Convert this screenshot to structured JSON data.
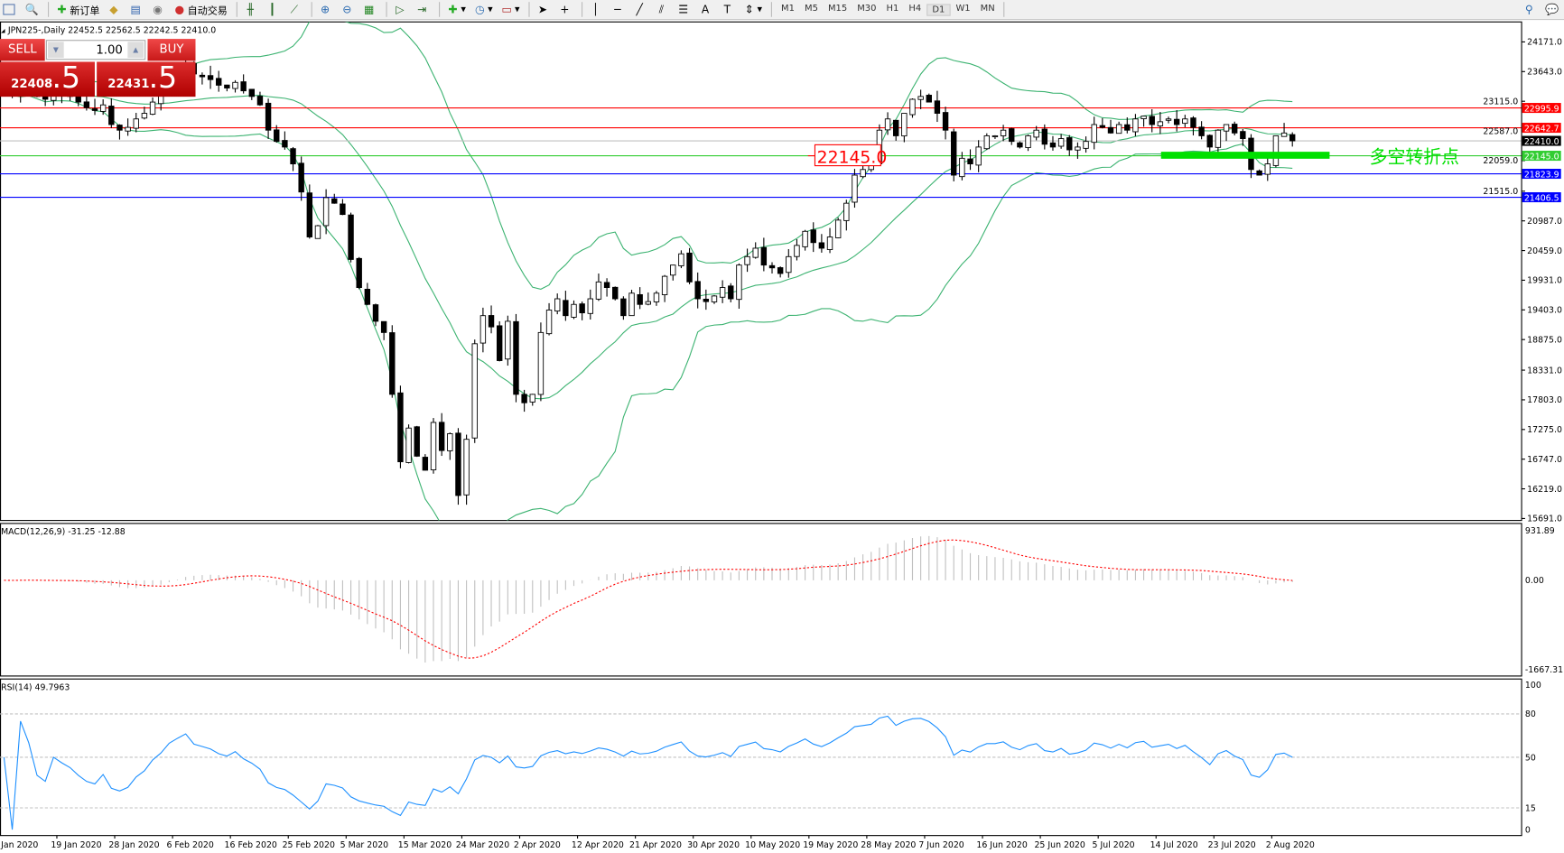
{
  "toolbar": {
    "new_order": "新订单",
    "auto_trading": "自动交易",
    "timeframes": [
      "M1",
      "M5",
      "M15",
      "M30",
      "H1",
      "H4",
      "D1",
      "W1",
      "MN"
    ],
    "active_timeframe": "D1"
  },
  "chart": {
    "header": "JPN225-,Daily  22452.5 22562.5 22242.5 22410.0",
    "annotation_price": "22145.0",
    "annotation_text": "多空转折点"
  },
  "trade_panel": {
    "sell_label": "SELL",
    "buy_label": "BUY",
    "lot": "1.00",
    "sell_main": "22408",
    "sell_frac": ".5",
    "buy_main": "22431",
    "buy_frac": ".5"
  },
  "colors": {
    "up_body": "#ffffff",
    "down_body": "#000000",
    "bands": "#3cb371",
    "macd_hist": "#c0c0c0",
    "macd_signal": "#ff0000",
    "rsi": "#1e90ff",
    "annotation": "#00e000"
  },
  "price_axis": [
    "24171.0",
    "23643.0",
    "23115.0",
    "22587.0",
    "22059.0",
    "21515.0",
    "20987.0",
    "20459.0",
    "19931.0",
    "19403.0",
    "18875.0",
    "18331.0",
    "17803.0",
    "17275.0",
    "16747.0",
    "16219.0",
    "15691.0"
  ],
  "hlines": [
    {
      "price": 22995.9,
      "label": "22995.9",
      "color": "#ff0000"
    },
    {
      "price": 22642.7,
      "label": "22642.7",
      "color": "#ff0000"
    },
    {
      "price": 22410.0,
      "label": "22410.0",
      "color": "#000000",
      "line": "#c0c0c0"
    },
    {
      "price": 22145.0,
      "label": "22145.0",
      "color": "#32cd32"
    },
    {
      "price": 21823.9,
      "label": "21823.9",
      "color": "#0000ff"
    },
    {
      "price": 21406.5,
      "label": "21406.5",
      "color": "#0000ff"
    }
  ],
  "macd": {
    "label": "MACD(12,26,9) -31.25 -12.88",
    "axis": [
      "931.89",
      "0.00",
      "-1667.31"
    ]
  },
  "rsi": {
    "label": "RSI(14) 49.7963",
    "axis": [
      "100",
      "80",
      "50",
      "15",
      "0"
    ]
  },
  "time_axis": [
    "Jan 2020",
    "19 Jan 2020",
    "28 Jan 2020",
    "6 Feb 2020",
    "16 Feb 2020",
    "25 Feb 2020",
    "5 Mar 2020",
    "15 Mar 2020",
    "24 Mar 2020",
    "2 Apr 2020",
    "12 Apr 2020",
    "21 Apr 2020",
    "30 Apr 2020",
    "10 May 2020",
    "19 May 2020",
    "28 May 2020",
    "7 Jun 2020",
    "16 Jun 2020",
    "25 Jun 2020",
    "5 Jul 2020",
    "14 Jul 2020",
    "23 Jul 2020",
    "2 Aug 2020"
  ],
  "chart_data": {
    "type": "candlestick",
    "symbol": "JPN225-",
    "timeframe": "Daily",
    "ylim": [
      15691,
      24171
    ],
    "closes": [
      23300,
      23250,
      23400,
      23350,
      23200,
      23150,
      23300,
      23250,
      23200,
      23100,
      23000,
      22950,
      23050,
      22700,
      22600,
      22650,
      22800,
      22900,
      23100,
      23250,
      23500,
      23650,
      23800,
      23600,
      23550,
      23500,
      23400,
      23350,
      23450,
      23300,
      23200,
      23050,
      22600,
      22400,
      22300,
      22000,
      21500,
      20700,
      20900,
      21400,
      21300,
      21100,
      20300,
      19800,
      19500,
      19200,
      19000,
      17900,
      16700,
      17300,
      16800,
      16550,
      17400,
      16900,
      17200,
      16100,
      17100,
      18800,
      19300,
      19100,
      18500,
      19200,
      17900,
      17750,
      17900,
      19000,
      19400,
      19600,
      19300,
      19500,
      19350,
      19600,
      19900,
      19800,
      19600,
      19300,
      19700,
      19500,
      19550,
      19700,
      20000,
      20200,
      20400,
      19900,
      19600,
      19550,
      19650,
      19800,
      19600,
      20200,
      20350,
      20500,
      20200,
      20150,
      20050,
      20350,
      20550,
      20800,
      20600,
      20500,
      20700,
      21000,
      21300,
      21800,
      21900,
      22000,
      22600,
      22800,
      22500,
      22900,
      23150,
      23200,
      23100,
      22900,
      22600,
      21800,
      22100,
      22000,
      22300,
      22500,
      22500,
      22600,
      22400,
      22300,
      22500,
      22600,
      22350,
      22300,
      22450,
      22250,
      22300,
      22400,
      22700,
      22650,
      22550,
      22700,
      22600,
      22800,
      22850,
      22700,
      22750,
      22800,
      22700,
      22800,
      22650,
      22500,
      22300,
      22600,
      22700,
      22550,
      22450,
      21900,
      21800,
      22000,
      22500,
      22550,
      22410
    ]
  }
}
